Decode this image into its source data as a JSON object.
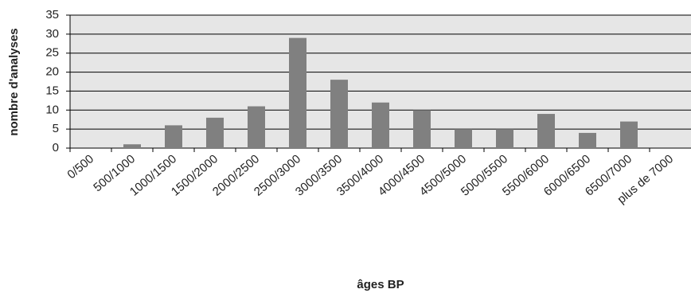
{
  "chart_data": {
    "type": "bar",
    "x_label": "âges BP",
    "y_label": "nombre d'analyses",
    "categories": [
      "0/500",
      "500/1000",
      "1000/1500",
      "1500/2000",
      "2000/2500",
      "2500/3000",
      "3000/3500",
      "3500/4000",
      "4000/4500",
      "4500/5000",
      "5000/5500",
      "5500/6000",
      "6000/6500",
      "6500/7000",
      "plus de 7000"
    ],
    "values": [
      0,
      1,
      6,
      8,
      11,
      29,
      18,
      12,
      10,
      5,
      5,
      9,
      4,
      7,
      0
    ],
    "color": "#808080",
    "ylim": [
      0,
      35
    ],
    "yticks": [
      0,
      5,
      10,
      15,
      20,
      25,
      30,
      35
    ],
    "grid": true
  }
}
